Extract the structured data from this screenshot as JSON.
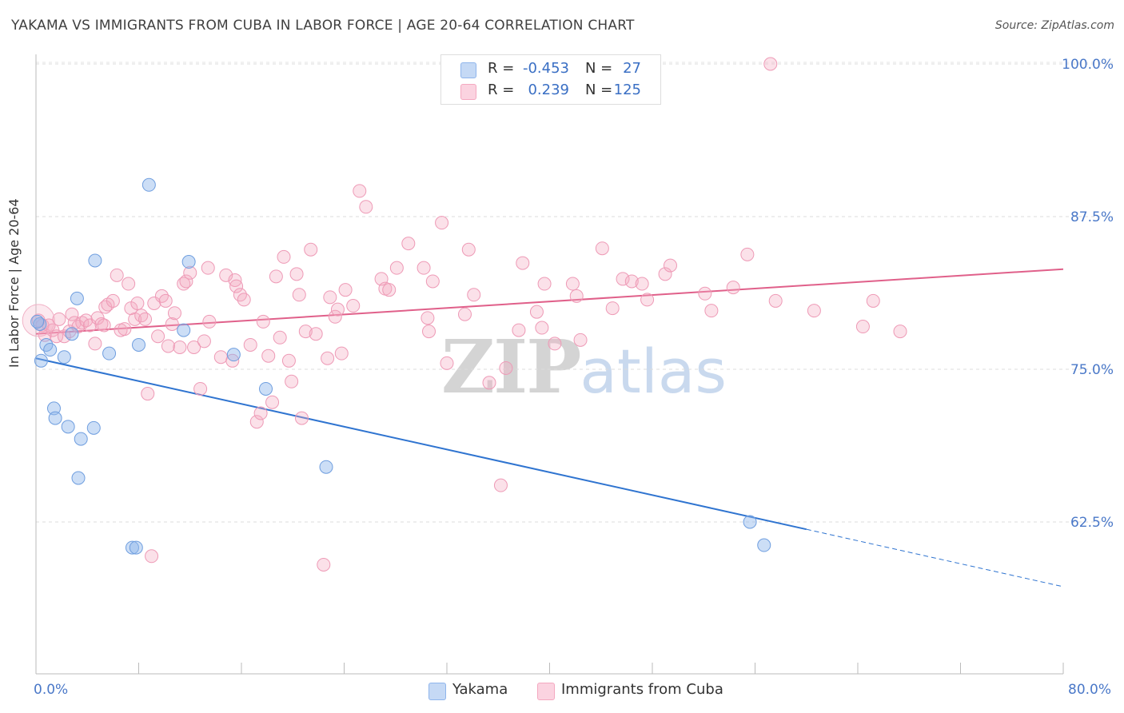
{
  "header": {
    "title": "YAKAMA VS IMMIGRANTS FROM CUBA IN LABOR FORCE | AGE 20-64 CORRELATION CHART",
    "source": "Source: ZipAtlas.com"
  },
  "watermark": {
    "zip": "ZIP",
    "atlas": "atlas"
  },
  "legend": {
    "rows": [
      {
        "r_label": "R =",
        "r_value": "-0.453",
        "n_label": "N =",
        "n_value": "27"
      },
      {
        "r_label": "R =",
        "r_value": "0.239",
        "n_label": "N =",
        "n_value": "125"
      }
    ]
  },
  "bottom_legend": {
    "yakama": "Yakama",
    "cuba": "Immigrants from Cuba"
  },
  "axes": {
    "ylabel": "In Labor Force | Age 20-64",
    "y_ticks": [
      "100.0%",
      "87.5%",
      "75.0%",
      "62.5%"
    ],
    "x_min_label": "0.0%",
    "x_max_label": "80.0%"
  },
  "chart_data": {
    "type": "scatter",
    "title": "YAKAMA VS IMMIGRANTS FROM CUBA IN LABOR FORCE | AGE 20-64 CORRELATION CHART",
    "xlabel": "",
    "ylabel": "In Labor Force | Age 20-64",
    "xlim": [
      0,
      80
    ],
    "ylim": [
      50,
      101
    ],
    "y_ticks": [
      62.5,
      75.0,
      87.5,
      100.0
    ],
    "grid": true,
    "colors": {
      "yakama": "#8fb5ec",
      "yakama_line": "#2f74d0",
      "cuba": "#f4a8c0",
      "cuba_line": "#e0608a"
    },
    "series": [
      {
        "name": "Yakama",
        "r": -0.453,
        "n": 27,
        "points": [
          [
            0.3,
            78.7
          ],
          [
            0.4,
            75.7
          ],
          [
            0.8,
            77.0
          ],
          [
            1.1,
            76.6
          ],
          [
            1.4,
            71.8
          ],
          [
            1.5,
            71.0
          ],
          [
            2.2,
            76.0
          ],
          [
            2.5,
            70.3
          ],
          [
            2.8,
            77.9
          ],
          [
            3.2,
            80.8
          ],
          [
            3.3,
            66.1
          ],
          [
            3.5,
            69.3
          ],
          [
            4.5,
            70.2
          ],
          [
            4.6,
            83.9
          ],
          [
            5.7,
            76.3
          ],
          [
            7.5,
            60.4
          ],
          [
            7.8,
            60.4
          ],
          [
            8.0,
            77.0
          ],
          [
            8.8,
            90.1
          ],
          [
            11.5,
            78.2
          ],
          [
            11.9,
            83.8
          ],
          [
            15.4,
            76.2
          ],
          [
            17.9,
            73.4
          ],
          [
            22.6,
            67.0
          ],
          [
            55.6,
            62.5
          ],
          [
            56.7,
            60.6
          ],
          [
            0.1,
            78.9
          ]
        ],
        "trend": {
          "x": [
            0,
            60
          ],
          "y": [
            75.9,
            61.9
          ]
        },
        "trend_dashed": {
          "x": [
            60,
            80
          ],
          "y": [
            61.9,
            57.2
          ]
        }
      },
      {
        "name": "Immigrants from Cuba",
        "r": 0.239,
        "n": 125,
        "points": [
          [
            0.2,
            79.0
          ],
          [
            0.5,
            78.6
          ],
          [
            0.7,
            77.8
          ],
          [
            1.0,
            78.6
          ],
          [
            1.3,
            78.2
          ],
          [
            1.6,
            77.7
          ],
          [
            1.8,
            79.1
          ],
          [
            2.2,
            77.7
          ],
          [
            2.6,
            78.1
          ],
          [
            2.8,
            79.5
          ],
          [
            3.0,
            78.8
          ],
          [
            3.3,
            78.5
          ],
          [
            3.6,
            78.8
          ],
          [
            3.9,
            79.0
          ],
          [
            4.2,
            78.6
          ],
          [
            4.6,
            77.1
          ],
          [
            4.8,
            79.2
          ],
          [
            5.1,
            78.7
          ],
          [
            5.3,
            78.6
          ],
          [
            5.4,
            80.1
          ],
          [
            5.6,
            80.3
          ],
          [
            6.0,
            80.6
          ],
          [
            6.3,
            82.7
          ],
          [
            6.6,
            78.2
          ],
          [
            6.9,
            78.3
          ],
          [
            7.2,
            82.0
          ],
          [
            7.4,
            80.0
          ],
          [
            7.7,
            79.1
          ],
          [
            7.9,
            80.4
          ],
          [
            8.2,
            79.4
          ],
          [
            8.5,
            79.1
          ],
          [
            8.7,
            73.0
          ],
          [
            9.0,
            59.7
          ],
          [
            9.2,
            80.4
          ],
          [
            9.5,
            77.7
          ],
          [
            9.8,
            81.0
          ],
          [
            10.1,
            80.6
          ],
          [
            10.3,
            76.9
          ],
          [
            10.6,
            78.7
          ],
          [
            10.8,
            79.6
          ],
          [
            11.2,
            76.8
          ],
          [
            11.5,
            82.0
          ],
          [
            11.7,
            82.2
          ],
          [
            12.0,
            82.9
          ],
          [
            12.3,
            76.8
          ],
          [
            12.8,
            73.4
          ],
          [
            13.1,
            77.3
          ],
          [
            13.4,
            83.3
          ],
          [
            13.5,
            78.9
          ],
          [
            14.4,
            76.0
          ],
          [
            14.8,
            82.7
          ],
          [
            15.3,
            75.7
          ],
          [
            15.5,
            82.3
          ],
          [
            15.6,
            81.8
          ],
          [
            15.9,
            81.1
          ],
          [
            16.2,
            80.7
          ],
          [
            16.7,
            77.0
          ],
          [
            17.2,
            70.7
          ],
          [
            17.5,
            71.4
          ],
          [
            17.7,
            78.9
          ],
          [
            18.1,
            76.1
          ],
          [
            18.4,
            72.3
          ],
          [
            18.7,
            82.6
          ],
          [
            19.0,
            77.6
          ],
          [
            19.3,
            84.2
          ],
          [
            19.7,
            75.7
          ],
          [
            19.9,
            74.0
          ],
          [
            20.3,
            82.8
          ],
          [
            20.5,
            81.1
          ],
          [
            20.7,
            71.0
          ],
          [
            21.0,
            78.1
          ],
          [
            21.4,
            84.8
          ],
          [
            21.8,
            77.9
          ],
          [
            22.4,
            59.0
          ],
          [
            22.7,
            75.9
          ],
          [
            22.9,
            80.9
          ],
          [
            23.3,
            79.3
          ],
          [
            23.5,
            79.9
          ],
          [
            23.8,
            76.3
          ],
          [
            24.1,
            81.5
          ],
          [
            24.7,
            80.2
          ],
          [
            25.2,
            89.6
          ],
          [
            25.7,
            88.3
          ],
          [
            26.9,
            82.4
          ],
          [
            27.2,
            81.6
          ],
          [
            27.5,
            81.5
          ],
          [
            28.1,
            83.3
          ],
          [
            29.0,
            85.3
          ],
          [
            30.2,
            83.3
          ],
          [
            30.5,
            79.2
          ],
          [
            30.6,
            78.1
          ],
          [
            30.9,
            82.2
          ],
          [
            31.6,
            87.0
          ],
          [
            32.0,
            75.5
          ],
          [
            33.4,
            79.5
          ],
          [
            33.7,
            84.8
          ],
          [
            34.1,
            81.1
          ],
          [
            35.3,
            73.9
          ],
          [
            36.2,
            65.5
          ],
          [
            36.6,
            75.1
          ],
          [
            37.6,
            78.2
          ],
          [
            37.9,
            83.7
          ],
          [
            39.0,
            79.7
          ],
          [
            39.4,
            78.4
          ],
          [
            39.6,
            82.0
          ],
          [
            40.4,
            77.1
          ],
          [
            41.8,
            82.0
          ],
          [
            42.1,
            81.0
          ],
          [
            42.4,
            77.4
          ],
          [
            44.1,
            84.9
          ],
          [
            44.9,
            80.0
          ],
          [
            45.7,
            82.4
          ],
          [
            46.4,
            82.2
          ],
          [
            47.2,
            82.0
          ],
          [
            47.6,
            80.7
          ],
          [
            49.0,
            82.8
          ],
          [
            49.4,
            83.5
          ],
          [
            52.1,
            81.2
          ],
          [
            52.6,
            79.8
          ],
          [
            54.3,
            81.7
          ],
          [
            55.4,
            84.4
          ],
          [
            57.6,
            80.6
          ],
          [
            60.6,
            79.8
          ],
          [
            64.4,
            78.5
          ],
          [
            65.2,
            80.6
          ],
          [
            67.3,
            78.1
          ],
          [
            57.2,
            100.0
          ]
        ],
        "trend": {
          "x": [
            0,
            80
          ],
          "y": [
            77.9,
            83.2
          ]
        }
      }
    ]
  }
}
